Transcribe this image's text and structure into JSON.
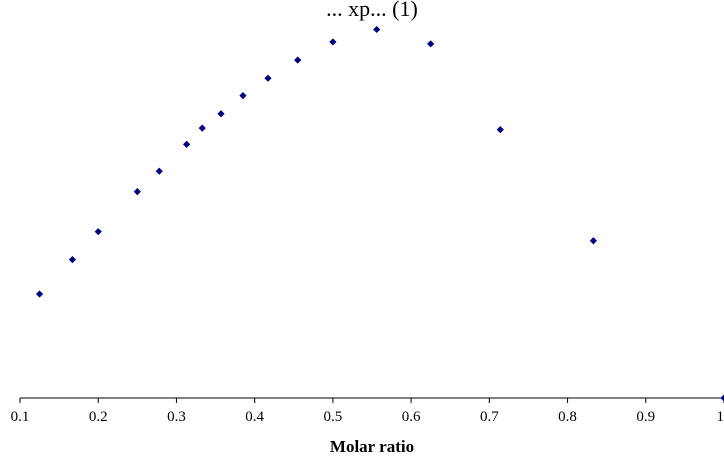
{
  "chart_data": {
    "type": "scatter",
    "title": "... xp... (1)",
    "xlabel": "Molar ratio",
    "ylabel": "",
    "xlim": [
      0.1,
      1.0
    ],
    "ylim": [
      0,
      1
    ],
    "x_ticks": [
      "0.1",
      "0.2",
      "0.3",
      "0.4",
      "0.5",
      "0.6",
      "0.7",
      "0.8",
      "0.9",
      "1"
    ],
    "y_ticks": [],
    "grid": false,
    "legend": "none",
    "series": [
      {
        "marker": "diamond",
        "color": "#000080",
        "points": [
          {
            "x": 0.125,
            "y": 0.275
          },
          {
            "x": 0.167,
            "y": 0.366
          },
          {
            "x": 0.2,
            "y": 0.44
          },
          {
            "x": 0.25,
            "y": 0.546
          },
          {
            "x": 0.278,
            "y": 0.6
          },
          {
            "x": 0.313,
            "y": 0.671
          },
          {
            "x": 0.333,
            "y": 0.714
          },
          {
            "x": 0.357,
            "y": 0.752
          },
          {
            "x": 0.385,
            "y": 0.8
          },
          {
            "x": 0.417,
            "y": 0.846
          },
          {
            "x": 0.455,
            "y": 0.894
          },
          {
            "x": 0.5,
            "y": 0.942
          },
          {
            "x": 0.556,
            "y": 0.975
          },
          {
            "x": 0.625,
            "y": 0.937
          },
          {
            "x": 0.714,
            "y": 0.71
          },
          {
            "x": 0.833,
            "y": 0.416
          },
          {
            "x": 1.0,
            "y": 0.0
          }
        ]
      }
    ]
  }
}
